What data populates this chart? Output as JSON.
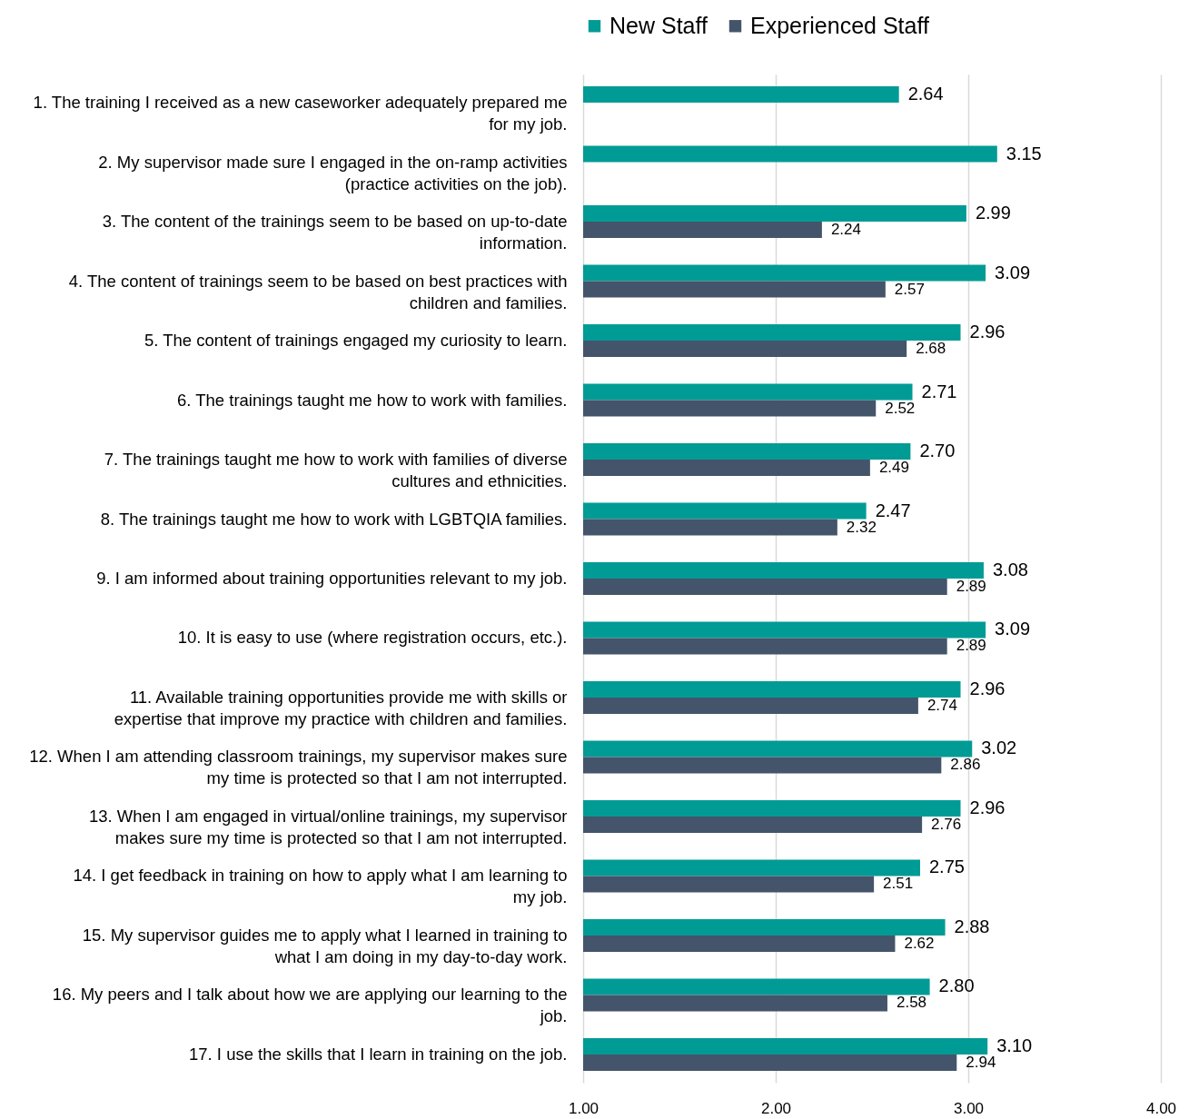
{
  "chart_data": {
    "type": "bar",
    "orientation": "horizontal",
    "categories": [
      "1.  The training I received as a new caseworker adequately prepared me for my job.",
      "2.  My supervisor made sure I engaged in the on-ramp activities (practice activities on the job).",
      "3.  The content of the trainings seem to be based on up-to-date information.",
      "4.  The content of trainings seem to be based on best practices with children and families.",
      "5.  The content of trainings engaged my curiosity to learn.",
      "6.  The trainings taught me how to work with families.",
      "7.  The trainings taught me how to work with families of diverse cultures and ethnicities.",
      "8.  The trainings taught me how to work with LGBTQIA families.",
      "9.  I am informed about training opportunities relevant to my job.",
      "10.  It is easy to use (where registration occurs, etc.).",
      "11.  Available training opportunities provide me with skills or expertise that improve my practice with children and families.",
      "12.  When I am attending classroom trainings, my supervisor makes sure my time is protected so that I am not interrupted.",
      "13.  When I am engaged in virtual/online trainings, my supervisor makes sure my time is protected so that I am not interrupted.",
      "14.  I get feedback in training on how to apply what I am learning to my job.",
      "15.  My supervisor guides me to apply what I learned in training to what I am doing in my day-to-day work.",
      "16.  My peers and I talk about how we are applying our learning to the job.",
      "17.  I use the skills that I learn in training on the job."
    ],
    "series": [
      {
        "name": "New Staff",
        "color": "#009b95",
        "values": [
          2.64,
          3.15,
          2.99,
          3.09,
          2.96,
          2.71,
          2.7,
          2.47,
          3.08,
          3.09,
          2.96,
          3.02,
          2.96,
          2.75,
          2.88,
          2.8,
          3.1
        ],
        "value_labels": [
          "2.64",
          "3.15",
          "2.99",
          "3.09",
          "2.96",
          "2.71",
          "2.70",
          "2.47",
          "3.08",
          "3.09",
          "2.96",
          "3.02",
          "2.96",
          "2.75",
          "2.88",
          "2.80",
          "3.10"
        ]
      },
      {
        "name": "Experienced Staff",
        "color": "#44546a",
        "values": [
          null,
          null,
          2.24,
          2.57,
          2.68,
          2.52,
          2.49,
          2.32,
          2.89,
          2.89,
          2.74,
          2.86,
          2.76,
          2.51,
          2.62,
          2.58,
          2.94
        ],
        "value_labels": [
          null,
          null,
          "2.24",
          "2.57",
          "2.68",
          "2.52",
          "2.49",
          "2.32",
          "2.89",
          "2.89",
          "2.74",
          "2.86",
          "2.76",
          "2.51",
          "2.62",
          "2.58",
          "2.94"
        ]
      }
    ],
    "xlim": [
      1,
      4
    ],
    "xticks": [
      {
        "value": 1,
        "label": "1.00"
      },
      {
        "value": 2,
        "label": "2.00"
      },
      {
        "value": 3,
        "label": "3.00"
      },
      {
        "value": 4,
        "label": "4.00"
      }
    ],
    "grid": "x",
    "legend": "top"
  }
}
